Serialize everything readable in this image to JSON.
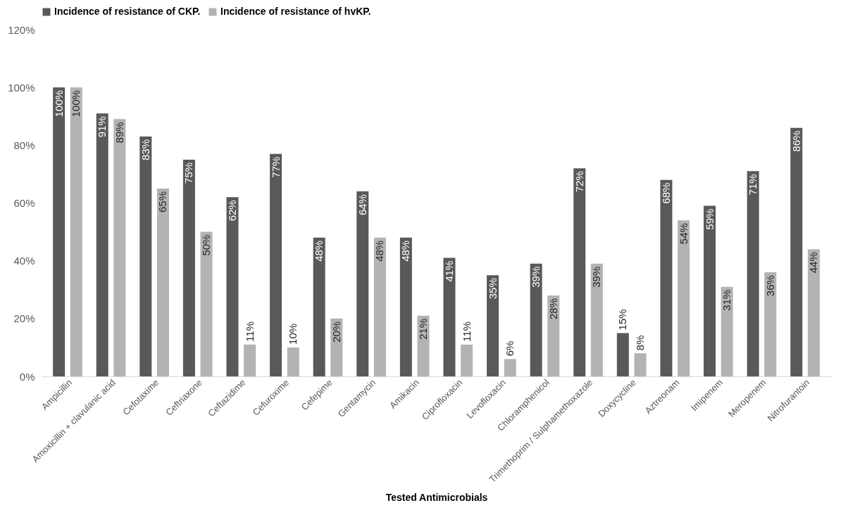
{
  "chart_data": {
    "type": "bar",
    "xlabel": "Tested Antimicrobials",
    "categories": [
      "Ampicillin",
      "Amoxicillin + clavulanic acid",
      "Cefotaxime",
      "Ceftriaxone",
      "Ceftazidime",
      "Cefuroxime",
      "Cefepime",
      "Gentamycin",
      "Amikacin",
      "Ciprofloxacin",
      "Levofloxacin",
      "Chloramphenicol",
      "Trimethoprim / Sulphamethoxazole",
      "Doxycycline",
      "Aztreonam",
      "Imipenem",
      "Meropenem",
      "Nitrofurantoin"
    ],
    "series": [
      {
        "name": "Incidence of resistance of CKP.",
        "color": "#595959",
        "values": [
          100,
          91,
          83,
          75,
          62,
          77,
          48,
          64,
          48,
          41,
          35,
          39,
          72,
          15,
          68,
          59,
          71,
          86
        ],
        "value_labels": [
          "100%",
          "91%",
          "83%",
          "75%",
          "62%",
          "77%",
          "48%",
          "64%",
          "48%",
          "41%",
          "35%",
          "39%",
          "72%",
          "15%",
          "68%",
          "59%",
          "71%",
          "86%"
        ]
      },
      {
        "name": "Incidence of resistance of hvKP.",
        "color": "#b3b3b3",
        "values": [
          100,
          89,
          65,
          50,
          11,
          10,
          20,
          48,
          21,
          11,
          6,
          28,
          39,
          8,
          54,
          31,
          36,
          44
        ],
        "value_labels": [
          "100%",
          "89%",
          "65%",
          "50%",
          "11%",
          "10%",
          "20%",
          "48%",
          "21%",
          "11%",
          "6%",
          "28%",
          "39%",
          "8%",
          "54%",
          "31%",
          "36%",
          "44%"
        ]
      }
    ],
    "ylim": [
      0,
      120
    ],
    "yticks": [
      {
        "value": 0,
        "label": "0%"
      },
      {
        "value": 20,
        "label": "20%"
      },
      {
        "value": 40,
        "label": "40%"
      },
      {
        "value": 60,
        "label": "60%"
      },
      {
        "value": 80,
        "label": "80%"
      },
      {
        "value": 100,
        "label": "100%"
      },
      {
        "value": 120,
        "label": "120%"
      }
    ],
    "legend": "top",
    "grid": false
  }
}
